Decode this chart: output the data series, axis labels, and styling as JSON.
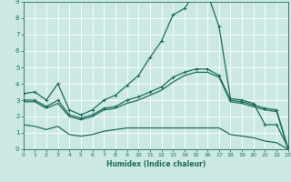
{
  "xlabel": "Humidex (Indice chaleur)",
  "bg_color": "#cce8e2",
  "grid_color": "#b8d8d2",
  "line_color": "#1e6b5e",
  "xlim": [
    0,
    23
  ],
  "ylim": [
    0,
    9
  ],
  "xticks": [
    0,
    1,
    2,
    3,
    4,
    5,
    6,
    7,
    8,
    9,
    10,
    11,
    12,
    13,
    14,
    15,
    16,
    17,
    18,
    19,
    20,
    21,
    22,
    23
  ],
  "yticks": [
    0,
    1,
    2,
    3,
    4,
    5,
    6,
    7,
    8,
    9
  ],
  "curves": [
    {
      "x": [
        0,
        1,
        2,
        3,
        4,
        5,
        6,
        7,
        8,
        9,
        10,
        11,
        12,
        13,
        14,
        15,
        16,
        17,
        18,
        19,
        20,
        21,
        22,
        23
      ],
      "y": [
        3.4,
        3.5,
        3.0,
        4.0,
        2.4,
        2.1,
        2.4,
        3.0,
        3.3,
        3.9,
        4.5,
        5.6,
        6.6,
        8.2,
        8.6,
        9.6,
        9.5,
        7.5,
        3.1,
        3.0,
        2.8,
        1.5,
        1.5,
        0.1
      ],
      "marker": true,
      "lw": 0.9
    },
    {
      "x": [
        0,
        1,
        2,
        3,
        4,
        5,
        6,
        7,
        8,
        9,
        10,
        11,
        12,
        13,
        14,
        15,
        16,
        17,
        18,
        19,
        20,
        21,
        22,
        23
      ],
      "y": [
        3.0,
        3.0,
        2.6,
        3.0,
        2.1,
        1.9,
        2.1,
        2.5,
        2.6,
        3.0,
        3.2,
        3.5,
        3.8,
        4.4,
        4.7,
        4.9,
        4.9,
        4.5,
        3.0,
        2.9,
        2.7,
        2.5,
        2.4,
        0.05
      ],
      "marker": true,
      "lw": 0.9
    },
    {
      "x": [
        0,
        1,
        2,
        3,
        4,
        5,
        6,
        7,
        8,
        9,
        10,
        11,
        12,
        13,
        14,
        15,
        16,
        17,
        18,
        19,
        20,
        21,
        22,
        23
      ],
      "y": [
        2.9,
        2.9,
        2.5,
        2.8,
        2.0,
        1.8,
        2.0,
        2.4,
        2.5,
        2.8,
        3.0,
        3.3,
        3.6,
        4.1,
        4.5,
        4.7,
        4.7,
        4.4,
        2.9,
        2.8,
        2.6,
        2.4,
        2.3,
        0.03
      ],
      "marker": false,
      "lw": 0.9
    },
    {
      "x": [
        0,
        1,
        2,
        3,
        4,
        5,
        6,
        7,
        8,
        9,
        10,
        11,
        12,
        13,
        14,
        15,
        16,
        17,
        18,
        19,
        20,
        21,
        22,
        23
      ],
      "y": [
        1.5,
        1.4,
        1.2,
        1.4,
        0.9,
        0.8,
        0.9,
        1.1,
        1.2,
        1.3,
        1.3,
        1.3,
        1.3,
        1.3,
        1.3,
        1.3,
        1.3,
        1.3,
        0.9,
        0.8,
        0.7,
        0.5,
        0.4,
        0.0
      ],
      "marker": false,
      "lw": 0.9
    }
  ]
}
